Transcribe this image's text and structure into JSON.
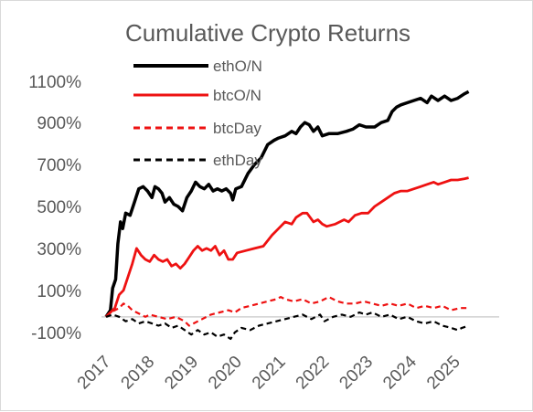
{
  "chart_data": {
    "type": "line",
    "title": "Cumulative Crypto Returns",
    "xlabel": "",
    "ylabel": "",
    "x_ticks": [
      "2017",
      "2018",
      "2019",
      "2020",
      "2021",
      "2022",
      "2023",
      "2024",
      "2025"
    ],
    "y_ticks": [
      "1100%",
      "900%",
      "700%",
      "500%",
      "300%",
      "100%",
      "-100%"
    ],
    "ylim": [
      -100,
      1100
    ],
    "xlim": [
      2017.0,
      2026.0
    ],
    "grid": false,
    "zero_line": true,
    "legend_position": "top-left",
    "series": [
      {
        "name": "ethO/N",
        "color": "#000000",
        "dash": "solid",
        "points": [
          [
            2017.0,
            0
          ],
          [
            2017.1,
            30
          ],
          [
            2017.15,
            130
          ],
          [
            2017.22,
            170
          ],
          [
            2017.27,
            330
          ],
          [
            2017.33,
            430
          ],
          [
            2017.38,
            400
          ],
          [
            2017.45,
            470
          ],
          [
            2017.55,
            460
          ],
          [
            2017.65,
            520
          ],
          [
            2017.75,
            580
          ],
          [
            2017.85,
            590
          ],
          [
            2017.95,
            570
          ],
          [
            2018.05,
            540
          ],
          [
            2018.12,
            590
          ],
          [
            2018.2,
            580
          ],
          [
            2018.28,
            560
          ],
          [
            2018.35,
            520
          ],
          [
            2018.45,
            540
          ],
          [
            2018.55,
            510
          ],
          [
            2018.65,
            500
          ],
          [
            2018.75,
            480
          ],
          [
            2018.85,
            540
          ],
          [
            2018.95,
            570
          ],
          [
            2019.05,
            610
          ],
          [
            2019.15,
            590
          ],
          [
            2019.25,
            580
          ],
          [
            2019.35,
            600
          ],
          [
            2019.45,
            570
          ],
          [
            2019.55,
            580
          ],
          [
            2019.65,
            570
          ],
          [
            2019.75,
            580
          ],
          [
            2019.85,
            560
          ],
          [
            2019.9,
            530
          ],
          [
            2019.97,
            580
          ],
          [
            2020.1,
            590
          ],
          [
            2020.25,
            650
          ],
          [
            2020.4,
            690
          ],
          [
            2020.55,
            720
          ],
          [
            2020.7,
            780
          ],
          [
            2020.85,
            800
          ],
          [
            2020.95,
            810
          ],
          [
            2021.1,
            820
          ],
          [
            2021.25,
            840
          ],
          [
            2021.35,
            830
          ],
          [
            2021.45,
            860
          ],
          [
            2021.55,
            880
          ],
          [
            2021.65,
            870
          ],
          [
            2021.75,
            840
          ],
          [
            2021.85,
            860
          ],
          [
            2021.95,
            820
          ],
          [
            2022.1,
            830
          ],
          [
            2022.3,
            830
          ],
          [
            2022.5,
            840
          ],
          [
            2022.65,
            850
          ],
          [
            2022.8,
            870
          ],
          [
            2022.95,
            860
          ],
          [
            2023.15,
            860
          ],
          [
            2023.3,
            880
          ],
          [
            2023.45,
            890
          ],
          [
            2023.55,
            930
          ],
          [
            2023.65,
            950
          ],
          [
            2023.75,
            960
          ],
          [
            2023.9,
            970
          ],
          [
            2024.05,
            980
          ],
          [
            2024.2,
            990
          ],
          [
            2024.35,
            970
          ],
          [
            2024.45,
            1000
          ],
          [
            2024.6,
            980
          ],
          [
            2024.75,
            1000
          ],
          [
            2024.9,
            980
          ],
          [
            2025.05,
            990
          ],
          [
            2025.2,
            1010
          ],
          [
            2025.3,
            1020
          ]
        ]
      },
      {
        "name": "btcO/N",
        "color": "#ee1111",
        "dash": "solid",
        "points": [
          [
            2017.0,
            0
          ],
          [
            2017.1,
            20
          ],
          [
            2017.2,
            40
          ],
          [
            2017.3,
            100
          ],
          [
            2017.4,
            120
          ],
          [
            2017.5,
            180
          ],
          [
            2017.6,
            240
          ],
          [
            2017.7,
            310
          ],
          [
            2017.8,
            280
          ],
          [
            2017.9,
            260
          ],
          [
            2018.0,
            250
          ],
          [
            2018.1,
            280
          ],
          [
            2018.2,
            260
          ],
          [
            2018.3,
            250
          ],
          [
            2018.4,
            260
          ],
          [
            2018.5,
            230
          ],
          [
            2018.6,
            240
          ],
          [
            2018.7,
            220
          ],
          [
            2018.8,
            240
          ],
          [
            2018.9,
            270
          ],
          [
            2019.0,
            300
          ],
          [
            2019.1,
            320
          ],
          [
            2019.2,
            300
          ],
          [
            2019.3,
            310
          ],
          [
            2019.4,
            300
          ],
          [
            2019.5,
            320
          ],
          [
            2019.6,
            280
          ],
          [
            2019.7,
            300
          ],
          [
            2019.8,
            260
          ],
          [
            2019.9,
            260
          ],
          [
            2020.0,
            290
          ],
          [
            2020.2,
            300
          ],
          [
            2020.4,
            310
          ],
          [
            2020.6,
            320
          ],
          [
            2020.8,
            370
          ],
          [
            2020.95,
            400
          ],
          [
            2021.1,
            430
          ],
          [
            2021.25,
            420
          ],
          [
            2021.35,
            450
          ],
          [
            2021.5,
            470
          ],
          [
            2021.6,
            470
          ],
          [
            2021.75,
            430
          ],
          [
            2021.85,
            440
          ],
          [
            2021.95,
            420
          ],
          [
            2022.05,
            410
          ],
          [
            2022.25,
            420
          ],
          [
            2022.45,
            440
          ],
          [
            2022.55,
            430
          ],
          [
            2022.7,
            460
          ],
          [
            2022.85,
            470
          ],
          [
            2023.0,
            470
          ],
          [
            2023.15,
            500
          ],
          [
            2023.3,
            520
          ],
          [
            2023.45,
            540
          ],
          [
            2023.6,
            560
          ],
          [
            2023.75,
            570
          ],
          [
            2023.9,
            570
          ],
          [
            2024.05,
            580
          ],
          [
            2024.2,
            590
          ],
          [
            2024.35,
            600
          ],
          [
            2024.5,
            610
          ],
          [
            2024.6,
            600
          ],
          [
            2024.75,
            610
          ],
          [
            2024.9,
            620
          ],
          [
            2025.05,
            620
          ],
          [
            2025.2,
            625
          ],
          [
            2025.3,
            630
          ]
        ]
      },
      {
        "name": "btcDay",
        "color": "#ee1111",
        "dash": "dashed",
        "points": [
          [
            2017.0,
            0
          ],
          [
            2017.1,
            20
          ],
          [
            2017.2,
            30
          ],
          [
            2017.3,
            40
          ],
          [
            2017.4,
            60
          ],
          [
            2017.5,
            50
          ],
          [
            2017.6,
            30
          ],
          [
            2017.7,
            20
          ],
          [
            2017.8,
            10
          ],
          [
            2017.9,
            0
          ],
          [
            2018.0,
            10
          ],
          [
            2018.2,
            0
          ],
          [
            2018.4,
            -10
          ],
          [
            2018.6,
            0
          ],
          [
            2018.8,
            -20
          ],
          [
            2018.9,
            -40
          ],
          [
            2019.0,
            -30
          ],
          [
            2019.2,
            -10
          ],
          [
            2019.4,
            10
          ],
          [
            2019.6,
            20
          ],
          [
            2019.8,
            30
          ],
          [
            2019.95,
            20
          ],
          [
            2020.1,
            40
          ],
          [
            2020.3,
            50
          ],
          [
            2020.5,
            60
          ],
          [
            2020.7,
            70
          ],
          [
            2020.9,
            80
          ],
          [
            2021.0,
            90
          ],
          [
            2021.1,
            80
          ],
          [
            2021.3,
            70
          ],
          [
            2021.5,
            80
          ],
          [
            2021.7,
            60
          ],
          [
            2021.9,
            70
          ],
          [
            2022.0,
            80
          ],
          [
            2022.1,
            90
          ],
          [
            2022.3,
            70
          ],
          [
            2022.5,
            60
          ],
          [
            2022.7,
            60
          ],
          [
            2022.9,
            70
          ],
          [
            2023.1,
            60
          ],
          [
            2023.3,
            50
          ],
          [
            2023.5,
            60
          ],
          [
            2023.7,
            50
          ],
          [
            2023.9,
            60
          ],
          [
            2024.1,
            40
          ],
          [
            2024.3,
            50
          ],
          [
            2024.5,
            40
          ],
          [
            2024.7,
            50
          ],
          [
            2024.9,
            30
          ],
          [
            2025.1,
            40
          ],
          [
            2025.3,
            40
          ]
        ]
      },
      {
        "name": "ethDay",
        "color": "#000000",
        "dash": "dashed",
        "points": [
          [
            2017.0,
            0
          ],
          [
            2017.15,
            10
          ],
          [
            2017.3,
            0
          ],
          [
            2017.45,
            -20
          ],
          [
            2017.6,
            -10
          ],
          [
            2017.75,
            -30
          ],
          [
            2017.9,
            -20
          ],
          [
            2018.05,
            -30
          ],
          [
            2018.2,
            -40
          ],
          [
            2018.35,
            -30
          ],
          [
            2018.5,
            -50
          ],
          [
            2018.65,
            -40
          ],
          [
            2018.8,
            -60
          ],
          [
            2018.95,
            -80
          ],
          [
            2019.1,
            -60
          ],
          [
            2019.25,
            -80
          ],
          [
            2019.4,
            -70
          ],
          [
            2019.55,
            -90
          ],
          [
            2019.7,
            -80
          ],
          [
            2019.85,
            -100
          ],
          [
            2019.95,
            -70
          ],
          [
            2020.1,
            -50
          ],
          [
            2020.3,
            -60
          ],
          [
            2020.5,
            -40
          ],
          [
            2020.7,
            -30
          ],
          [
            2020.9,
            -20
          ],
          [
            2021.1,
            -10
          ],
          [
            2021.3,
            0
          ],
          [
            2021.5,
            10
          ],
          [
            2021.7,
            -10
          ],
          [
            2021.9,
            10
          ],
          [
            2022.0,
            -20
          ],
          [
            2022.2,
            0
          ],
          [
            2022.4,
            10
          ],
          [
            2022.6,
            0
          ],
          [
            2022.8,
            20
          ],
          [
            2022.95,
            10
          ],
          [
            2023.1,
            20
          ],
          [
            2023.3,
            0
          ],
          [
            2023.5,
            10
          ],
          [
            2023.7,
            -10
          ],
          [
            2023.9,
            0
          ],
          [
            2024.1,
            -20
          ],
          [
            2024.3,
            -30
          ],
          [
            2024.5,
            -20
          ],
          [
            2024.7,
            -40
          ],
          [
            2024.9,
            -50
          ],
          [
            2025.05,
            -60
          ],
          [
            2025.15,
            -50
          ],
          [
            2025.3,
            -40
          ]
        ]
      }
    ]
  }
}
